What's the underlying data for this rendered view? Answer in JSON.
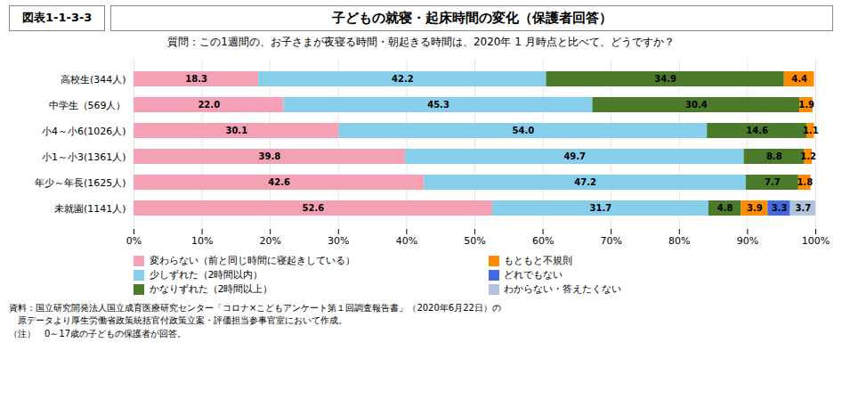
{
  "chart_data": {
    "type": "bar",
    "orientation": "horizontal",
    "stacked": true,
    "title": "子どもの就寝・起床時間の変化（保護者回答）",
    "subtitle": "質問：この1週間の、お子さまが夜寝る時間・朝起きる時間は、2020年 1 月時点と比べて、どうですか？",
    "annotations": [
      "図表1-1-3-3",
      "資料：国立研究開発法人国立成育医療研究センター「コロナ×こどもアンケート第１回調査報告書」（2020年6月22日）の",
      "　原データより厚生労働省政策統括官付政策立案・評価担当参事官室において作成。",
      "（注）　0～17歳の子どもの保護者が回答。"
    ],
    "categories": [
      "高校生(344人)",
      "中学生（569人）",
      "小4～小6(1026人)",
      "小1～小3(1361人)",
      "年少～年長(1625人)",
      "未就園(1141人)"
    ],
    "series": [
      {
        "name": "変わらない（前と同じ時間に寝起きしている）",
        "color": "#F4A0B5",
        "values": [
          18.3,
          22.0,
          30.1,
          39.8,
          42.6,
          52.6
        ],
        "value_labels": [
          "18.3",
          "22.0",
          "30.1",
          "39.8",
          "42.6",
          "52.6"
        ]
      },
      {
        "name": "少しずれた（2時間以内）",
        "color": "#87CEEB",
        "values": [
          42.2,
          45.3,
          54.0,
          49.7,
          47.2,
          31.7
        ],
        "value_labels": [
          "42.2",
          "45.3",
          "54.0",
          "49.7",
          "47.2",
          "31.7"
        ]
      },
      {
        "name": "かなりずれた（2時間以上）",
        "color": "#4A7A2A",
        "values": [
          34.9,
          30.4,
          14.6,
          8.8,
          7.7,
          4.8
        ],
        "value_labels": [
          "34.9",
          "30.4",
          "14.6",
          "8.8",
          "7.7",
          "4.8"
        ]
      },
      {
        "name": "もともと不規則",
        "color": "#FF8C00",
        "values": [
          4.4,
          1.9,
          1.1,
          1.2,
          1.8,
          3.9
        ],
        "value_labels": [
          "4.4",
          "1.9",
          "1.1",
          "1.2",
          "1.8",
          "3.9"
        ]
      },
      {
        "name": "どれでもない",
        "color": "#4169E1",
        "values": [
          0.0,
          0.0,
          0.0,
          0.0,
          0.0,
          3.3
        ],
        "value_labels": [
          null,
          null,
          null,
          null,
          null,
          "3.3"
        ]
      },
      {
        "name": "わからない・答えたくない",
        "color": "#B0C4DE",
        "values": [
          0.0,
          0.0,
          0.0,
          0.0,
          0.0,
          3.7
        ],
        "value_labels": [
          null,
          null,
          null,
          null,
          null,
          "3.7"
        ]
      }
    ],
    "xlim": [
      0,
      100
    ],
    "xticks": [
      {
        "value": 0,
        "label": "0%"
      },
      {
        "value": 10,
        "label": "10%"
      },
      {
        "value": 20,
        "label": "20%"
      },
      {
        "value": 30,
        "label": "30%"
      },
      {
        "value": 40,
        "label": "40%"
      },
      {
        "value": 50,
        "label": "50%"
      },
      {
        "value": 60,
        "label": "60%"
      },
      {
        "value": 70,
        "label": "70%"
      },
      {
        "value": 80,
        "label": "80%"
      },
      {
        "value": 90,
        "label": "90%"
      },
      {
        "value": 100,
        "label": "100%"
      }
    ],
    "grid": true,
    "data_labels": true,
    "legend": "bottom"
  }
}
